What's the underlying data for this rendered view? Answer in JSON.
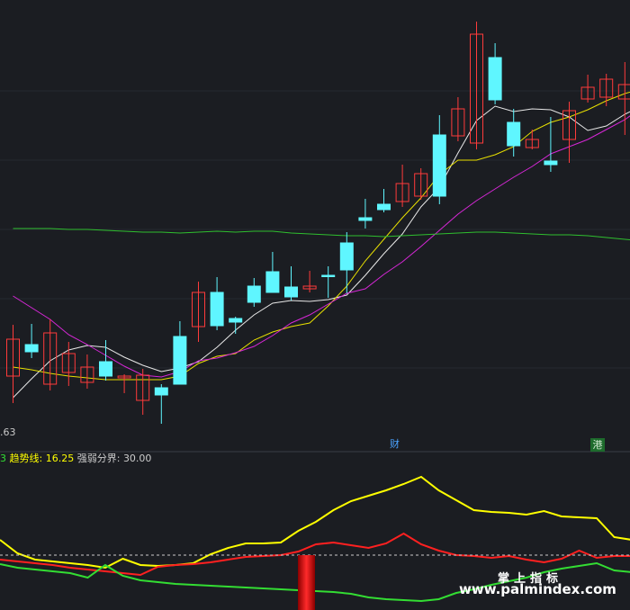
{
  "legend": {
    "prefix": "3",
    "trend_label": "趋势线:",
    "trend_value": "16.25",
    "bound_label": "强弱分界:",
    "bound_value": "30.00"
  },
  "price_label": ".63",
  "markers": {
    "cai": "财",
    "gang": "港"
  },
  "watermark": {
    "cn": "掌上指标",
    "url": "www.palmindex.com"
  },
  "colors": {
    "background": "#1b1d22",
    "up": "#ff3b3b",
    "down": "#5ff6ff",
    "ma_white": "#e8e8e8",
    "ma_yellow": "#e8e000",
    "ma_magenta": "#d627d6",
    "ma_green": "#2fbf2f",
    "ind_yellow": "#ffff00",
    "ind_red": "#ff2020",
    "ind_green": "#33dd33",
    "dashed": "#cccccc",
    "bar": "#cc0000"
  },
  "chart_data": [
    {
      "type": "candlestick",
      "series": [
        {
          "name": "candles",
          "ohlc": [
            [
              418,
              377,
              448,
              361
            ],
            [
              383,
              391,
              398,
              360
            ],
            [
              427,
              370,
              434,
              355
            ],
            [
              414,
              393,
              429,
              380
            ],
            [
              425,
              408,
              432,
              394
            ],
            [
              402,
              418,
              423,
              378
            ],
            [
              420,
              418,
              437,
              416
            ],
            [
              445,
              417,
              461,
              410
            ],
            [
              431,
              439,
              471,
              427
            ],
            [
              374,
              427,
              427,
              357
            ],
            [
              363,
              325,
              380,
              313
            ],
            [
              325,
              362,
              367,
              308
            ],
            [
              354,
              358,
              371,
              352
            ],
            [
              318,
              336,
              341,
              309
            ],
            [
              302,
              325,
              309,
              280
            ],
            [
              319,
              330,
              334,
              296
            ],
            [
              321,
              318,
              325,
              301
            ],
            [
              306,
              307,
              331,
              296
            ],
            [
              270,
              300,
              326,
              258
            ],
            [
              242,
              245,
              254,
              221
            ],
            [
              227,
              233,
              236,
              210
            ],
            [
              224,
              204,
              230,
              183
            ],
            [
              218,
              193,
              222,
              187
            ],
            [
              150,
              218,
              227,
              128
            ],
            [
              151,
              121,
              157,
              108
            ],
            [
              159,
              38,
              166,
              24
            ],
            [
              64,
              111,
              116,
              48
            ],
            [
              136,
              162,
              174,
              121
            ],
            [
              164,
              155,
              166,
              144
            ],
            [
              179,
              183,
              191,
              130
            ],
            [
              155,
              123,
              181,
              113
            ],
            [
              110,
              97,
              114,
              83
            ],
            [
              108,
              88,
              118,
              82
            ],
            [
              110,
              94,
              150,
              69
            ],
            [
              40,
              6,
              50,
              0
            ],
            [
              6,
              78,
              78,
              2
            ],
            [
              125,
              146,
              154,
              113
            ]
          ]
        }
      ],
      "ma_series": {
        "white": [
          442,
          421,
          401,
          389,
          384,
          386,
          397,
          406,
          413,
          409,
          402,
          386,
          367,
          350,
          337,
          334,
          335,
          333,
          328,
          306,
          282,
          260,
          230,
          208,
          170,
          134,
          118,
          124,
          121,
          122,
          130,
          145,
          140,
          127,
          117,
          96,
          89
        ],
        "yellow": [
          408,
          411,
          415,
          418,
          420,
          422,
          422,
          422,
          422,
          418,
          404,
          396,
          393,
          378,
          369,
          363,
          359,
          340,
          318,
          290,
          266,
          242,
          220,
          194,
          178,
          178,
          172,
          163,
          146,
          136,
          130,
          122,
          112,
          104,
          98,
          108,
          107
        ],
        "magenta": [
          329,
          342,
          355,
          372,
          383,
          395,
          407,
          417,
          419,
          413,
          401,
          398,
          392,
          385,
          373,
          359,
          350,
          338,
          326,
          321,
          305,
          291,
          274,
          256,
          238,
          223,
          210,
          197,
          185,
          171,
          163,
          155,
          144,
          133,
          118,
          100,
          86
        ],
        "green": [
          254,
          254,
          254,
          255,
          255,
          256,
          257,
          258,
          258,
          259,
          258,
          257,
          258,
          257,
          257,
          259,
          260,
          261,
          262,
          262,
          263,
          262,
          261,
          260,
          259,
          258,
          258,
          259,
          260,
          261,
          261,
          262,
          264,
          266,
          268,
          271,
          273
        ]
      },
      "xlabel": "",
      "ylabel": ""
    },
    {
      "type": "line",
      "y_scale": "inverted-pixel-like",
      "series": [
        {
          "name": "趋势线",
          "values": [
            600,
            615,
            622,
            624,
            626,
            628,
            631,
            621,
            628,
            629,
            628,
            626,
            616,
            609,
            604,
            604,
            603,
            590,
            580,
            567,
            557,
            551,
            545,
            538,
            530,
            545,
            556,
            567,
            569,
            570,
            572,
            568,
            574,
            575,
            576,
            597,
            600
          ]
        },
        {
          "name": "red",
          "values": [
            622,
            624,
            626,
            628,
            631,
            633,
            635,
            637,
            639,
            630,
            628,
            627,
            625,
            622,
            619,
            618,
            617,
            613,
            605,
            603,
            606,
            609,
            604,
            593,
            605,
            612,
            617,
            618,
            620,
            618,
            622,
            625,
            621,
            612,
            620,
            618,
            618
          ]
        },
        {
          "name": "green",
          "values": [
            627,
            631,
            633,
            635,
            637,
            642,
            628,
            640,
            645,
            647,
            649,
            650,
            651,
            652,
            653,
            654,
            655,
            656,
            657,
            658,
            660,
            664,
            666,
            667,
            668,
            666,
            659,
            655,
            650,
            646,
            642,
            636,
            632,
            629,
            626,
            634,
            636
          ]
        },
        {
          "name": "强弱分界",
          "values": [
            617
          ]
        }
      ],
      "bar": {
        "value": 1
      },
      "xlabel": "",
      "ylabel": ""
    }
  ]
}
